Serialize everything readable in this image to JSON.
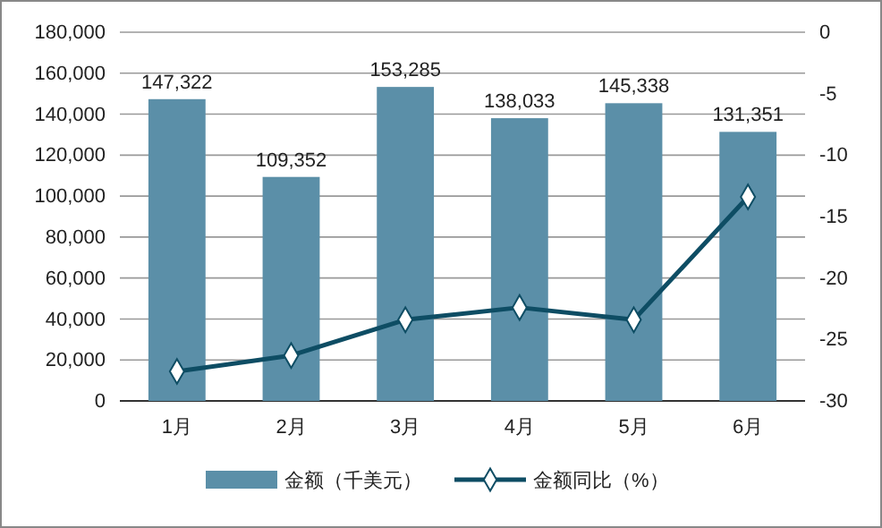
{
  "chart_data": {
    "type": "bar",
    "categories": [
      "1月",
      "2月",
      "3月",
      "4月",
      "5月",
      "6月"
    ],
    "series": [
      {
        "name": "金额（千美元）",
        "color": "#5b8fa8",
        "values": [
          147322,
          109352,
          153285,
          138033,
          145338,
          131351
        ],
        "value_labels": [
          "147,322",
          "109,352",
          "153,285",
          "138,033",
          "145,338",
          "131,351"
        ]
      },
      {
        "name": "金额同比（%）",
        "type": "line",
        "axis": "y2",
        "color": "#0e4d64",
        "marker": "diamond",
        "values": [
          -27.6,
          -26.3,
          -23.4,
          -22.4,
          -23.4,
          -13.4
        ]
      }
    ],
    "ylim": [
      0,
      180000
    ],
    "yticks": [
      0,
      {
        "value": 20000,
        "label": "20,000"
      },
      {
        "value": 40000,
        "label": "40,000"
      },
      {
        "value": 60000,
        "label": "60,000"
      },
      {
        "value": 80000,
        "label": "80,000"
      },
      {
        "value": 100000,
        "label": "100,000"
      },
      {
        "value": 120000,
        "label": "120,000"
      },
      {
        "value": 140000,
        "label": "140,000"
      },
      {
        "value": 160000,
        "label": "160,000"
      },
      {
        "value": 180000,
        "label": "180,000"
      }
    ],
    "y2lim": [
      -30,
      0
    ],
    "y2ticks": [
      -30,
      -25,
      -20,
      -15,
      -10,
      -5,
      0
    ],
    "grid": "y",
    "legend": "bottom"
  }
}
